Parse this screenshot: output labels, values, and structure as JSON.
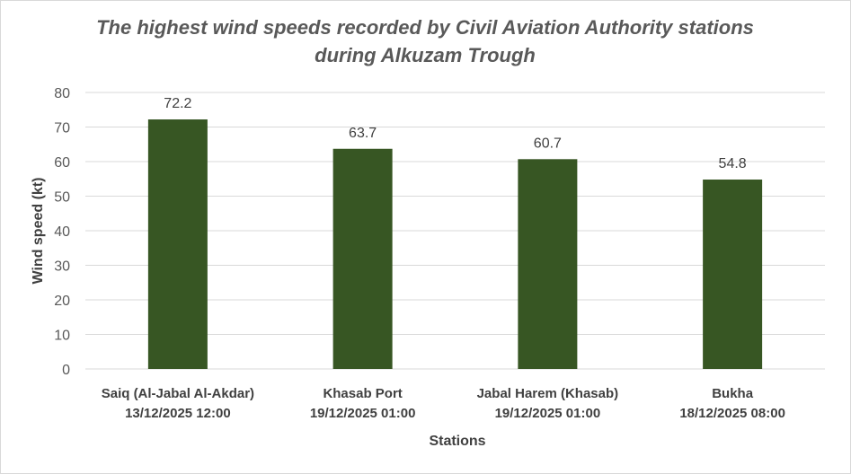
{
  "chart_data": {
    "type": "bar",
    "title_lines": [
      "The highest wind speeds recorded by Civil Aviation Authority stations",
      "during  Alkuzam Trough"
    ],
    "categories": [
      [
        "Saiq (Al-Jabal Al-Akdar)",
        "13/12/2025  12:00"
      ],
      [
        "Khasab Port",
        "19/12/2025  01:00"
      ],
      [
        "Jabal Harem (Khasab)",
        "19/12/2025  01:00"
      ],
      [
        "Bukha",
        "18/12/2025  08:00"
      ]
    ],
    "values": [
      72.2,
      63.7,
      60.7,
      54.8
    ],
    "data_labels": [
      "72.2",
      "63.7",
      "60.7",
      "54.8"
    ],
    "xlabel": "Stations",
    "ylabel": "Wind speed (kt)",
    "ylim": [
      0,
      80
    ],
    "yticks": [
      "0",
      "10",
      "20",
      "30",
      "40",
      "50",
      "60",
      "70",
      "80"
    ],
    "grid": true,
    "bar_color": "#375623",
    "grid_color": "#d9d9d9"
  }
}
